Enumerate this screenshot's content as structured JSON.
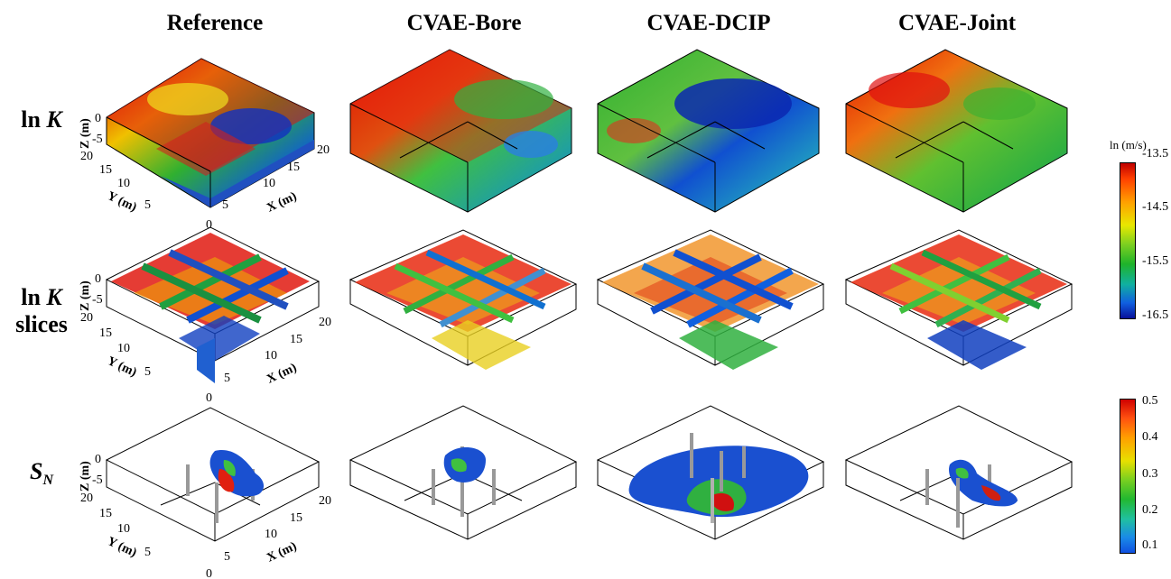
{
  "columns": [
    "Reference",
    "CVAE-Bore",
    "CVAE-DCIP",
    "CVAE-Joint"
  ],
  "rows": {
    "lnk": {
      "prefix": "ln ",
      "var": "K"
    },
    "slices": {
      "prefix": "ln ",
      "var": "K",
      "suffix": "slices"
    },
    "sn": {
      "var": "S",
      "sub": "N"
    }
  },
  "axes": {
    "z_label": "Z (m)",
    "y_label": "Y (m)",
    "x_label": "X (m)",
    "z_ticks": [
      "0",
      "-5"
    ],
    "y_ticks": [
      "20",
      "15",
      "10",
      "5"
    ],
    "x_ticks": [
      "20",
      "15",
      "10",
      "5"
    ],
    "origin": "0"
  },
  "colorbar_lnk": {
    "title": "ln (m/s)",
    "ticks": [
      "-13.5",
      "-14.5",
      "-15.5",
      "-16.5"
    ],
    "colors": [
      "#c00000",
      "#ffa000",
      "#e8e800",
      "#1fb32a",
      "#10b0a0",
      "#08109a"
    ]
  },
  "colorbar_sn": {
    "ticks": [
      "0.5",
      "0.4",
      "0.3",
      "0.2",
      "0.1"
    ],
    "colors": [
      "#d00000",
      "#ffa000",
      "#e8e000",
      "#22b830",
      "#20c0a0",
      "#1050e0"
    ]
  }
}
